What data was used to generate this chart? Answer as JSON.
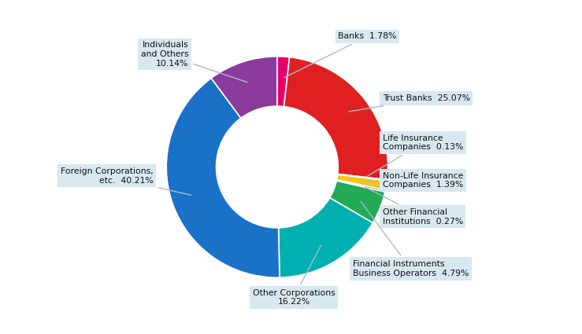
{
  "label_short": [
    "Banks  1.78%",
    "Trust Banks  25.07%",
    "Life Insurance\nCompanies  0.13%",
    "Non-Life Insurance\nCompanies  1.39%",
    "Other Financial\nInstitutions  0.27%",
    "Financial Instruments\nBusiness Operators  4.79%",
    "Other Corporations\n16.22%",
    "Foreign Corporations,\netc.  40.21%",
    "Individuals\nand Others\n10.14%"
  ],
  "values": [
    1.78,
    25.07,
    0.13,
    1.39,
    0.27,
    4.79,
    16.22,
    40.21,
    10.14
  ],
  "colors": [
    "#E8006A",
    "#E02020",
    "#808000",
    "#F5C518",
    "#111111",
    "#22AA55",
    "#00B0B0",
    "#1A72C8",
    "#8B3A9E"
  ],
  "background_color": "#FFFFFF",
  "annotation_box_color": "#D8E8F0",
  "annotation_text_color": "#111111",
  "donut_width": 0.45
}
